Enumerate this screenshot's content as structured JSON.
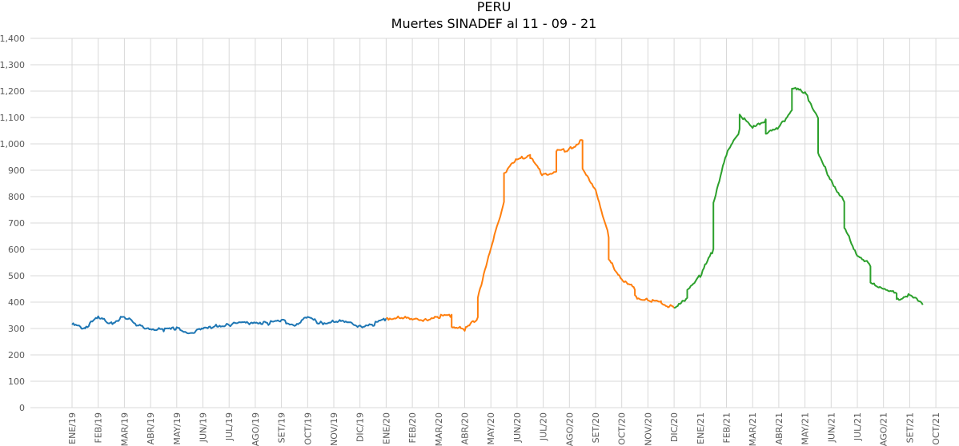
{
  "chart_data": {
    "type": "line",
    "title": "PERU",
    "subtitle": "Muertes SINADEF al 11 - 09 - 21",
    "xlabel": "",
    "ylabel": "",
    "ylim": [
      0,
      1400
    ],
    "yticks": [
      "0",
      "100",
      "200",
      "300",
      "400",
      "500",
      "600",
      "700",
      "800",
      "900",
      "1,000",
      "1,100",
      "1,200",
      "1,300",
      "1,400"
    ],
    "xticks": [
      "ENE/19",
      "FEB/19",
      "MAR/19",
      "ABR/19",
      "MAY/19",
      "JUN/19",
      "JUL/19",
      "AGO/19",
      "SET/19",
      "OCT/19",
      "NOV/19",
      "DIC/19",
      "ENE/20",
      "FEB/20",
      "MAR/20",
      "ABR/20",
      "MAY/20",
      "JUN/20",
      "JUL/20",
      "AGO/20",
      "SET/20",
      "OCT/20",
      "NOV/20",
      "DIC/20",
      "ENE/21",
      "FEB/21",
      "MAR/21",
      "ABR/21",
      "MAY/21",
      "JUN/21",
      "JUL/21",
      "AGO/21",
      "SET/21",
      "OCT/21"
    ],
    "grid": true,
    "legend": "none",
    "colors": [
      "#1f77b4",
      "#ff7f0e",
      "#2ca02c"
    ],
    "series": [
      {
        "x": [
          "ENE/19",
          "ENE/19+",
          "FEB/19-",
          "FEB/19",
          "FEB/19+",
          "MAR/19",
          "MAR/19+",
          "ABR/19",
          "ABR/19+",
          "MAY/19",
          "MAY/19+",
          "JUN/19",
          "JUN/19+",
          "JUL/19",
          "JUL/19+",
          "AGO/19",
          "AGO/19+",
          "SET/19",
          "SET/19+",
          "OCT/19",
          "OCT/19+",
          "NOV/19",
          "NOV/19+",
          "DIC/19",
          "DIC/19+",
          "ENE/20"
        ],
        "values": [
          315,
          300,
          305,
          340,
          320,
          345,
          310,
          300,
          295,
          300,
          285,
          295,
          310,
          315,
          318,
          325,
          320,
          330,
          315,
          340,
          320,
          330,
          320,
          310,
          315,
          338
        ]
      },
      {
        "x": [
          "ENE/20",
          "ENE/20+",
          "FEB/20",
          "FEB/20+",
          "MAR/20",
          "MAR/20+",
          "ABR/20-",
          "ABR/20",
          "ABR/20+",
          "MAY/20-",
          "MAY/20",
          "MAY/20+",
          "JUN/20-",
          "JUN/20",
          "JUN/20+",
          "JUL/20-",
          "JUL/20",
          "JUL/20+",
          "AGO/20-",
          "AGO/20",
          "AGO/20+",
          "SET/20-",
          "SET/20",
          "SET/20+",
          "OCT/20-",
          "OCT/20",
          "OCT/20+",
          "NOV/20-",
          "NOV/20",
          "NOV/20+",
          "DIC/20-",
          "DIC/20"
        ],
        "values": [
          338,
          345,
          330,
          335,
          345,
          350,
          310,
          295,
          340,
          420,
          600,
          780,
          890,
          940,
          960,
          950,
          880,
          900,
          970,
          980,
          1015,
          900,
          830,
          650,
          560,
          490,
          450,
          420,
          410,
          400,
          395,
          378
        ]
      },
      {
        "x": [
          "DIC/20",
          "DIC/20+",
          "ENE/21-",
          "ENE/21",
          "ENE/21+",
          "FEB/21-",
          "FEB/21",
          "FEB/21+",
          "MAR/21-",
          "MAR/21",
          "MAR/21+",
          "ABR/21-",
          "ABR/21",
          "ABR/21+",
          "MAY/21-",
          "MAY/21",
          "MAY/21+",
          "JUN/21-",
          "JUN/21",
          "JUN/21+",
          "JUL/21-",
          "JUL/21",
          "JUL/21+",
          "AGO/21-",
          "AGO/21",
          "AGO/21+",
          "SET/21-",
          "SET/21",
          "SET/21+"
        ],
        "values": [
          378,
          410,
          450,
          500,
          600,
          780,
          960,
          1050,
          1115,
          1060,
          1090,
          1040,
          1060,
          1130,
          1210,
          1195,
          1100,
          960,
          860,
          780,
          680,
          580,
          540,
          470,
          455,
          430,
          410,
          430,
          390
        ]
      }
    ]
  }
}
